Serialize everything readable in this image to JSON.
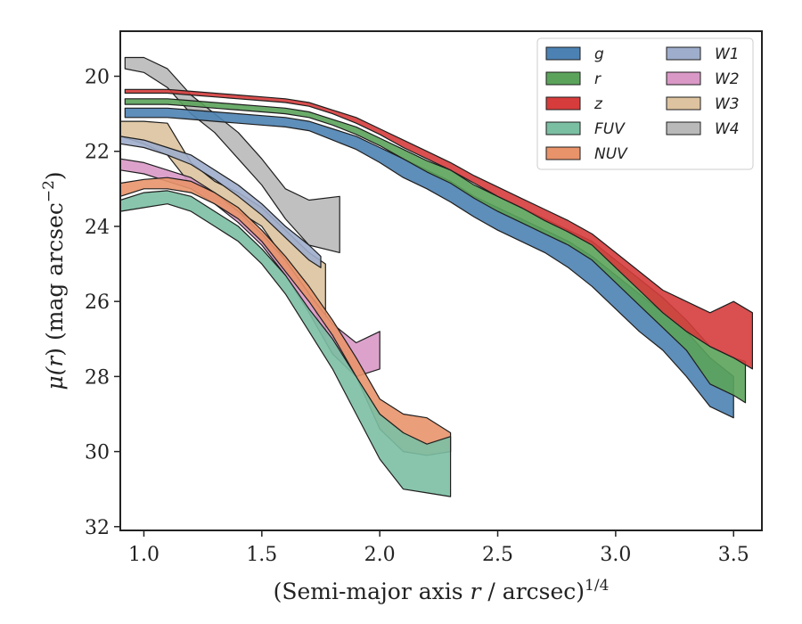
{
  "chart_data": {
    "type": "area",
    "title": "",
    "xlabel": "(Semi-major axis r / arcsec)",
    "xlabel_parts": {
      "pre": "(Semi-major axis ",
      "var": "r",
      "post": " / arcsec)",
      "sup": "1/4"
    },
    "ylabel": "μ(r) (mag arcsec⁻²)",
    "ylabel_parts": {
      "mu": "μ(",
      "var": "r",
      "close": ")",
      "units": " (mag arcsec",
      "sup": "−2",
      "end": ")"
    },
    "xlim": [
      0.9,
      3.62
    ],
    "ylim": [
      32.1,
      18.8
    ],
    "y_inverted": true,
    "xticks": [
      1.0,
      1.5,
      2.0,
      2.5,
      3.0,
      3.5
    ],
    "xtick_labels": [
      "1.0",
      "1.5",
      "2.0",
      "2.5",
      "3.0",
      "3.5"
    ],
    "yticks": [
      20,
      22,
      24,
      26,
      28,
      30,
      32
    ],
    "ytick_labels": [
      "20",
      "22",
      "24",
      "26",
      "28",
      "30",
      "32"
    ],
    "grid": false,
    "legend_position": "top-right",
    "legend_columns": 2,
    "series": [
      {
        "name": "g",
        "color": "#4c82b3",
        "x": [
          0.92,
          1.0,
          1.1,
          1.2,
          1.3,
          1.4,
          1.5,
          1.6,
          1.7,
          1.8,
          1.9,
          2.0,
          2.1,
          2.2,
          2.3,
          2.4,
          2.5,
          2.6,
          2.7,
          2.8,
          2.9,
          3.0,
          3.1,
          3.2,
          3.3,
          3.4,
          3.5
        ],
        "y_upper": [
          20.85,
          20.85,
          20.85,
          20.9,
          20.95,
          21.0,
          21.05,
          21.1,
          21.2,
          21.4,
          21.6,
          21.9,
          22.2,
          22.5,
          22.8,
          23.2,
          23.5,
          23.8,
          24.1,
          24.4,
          24.8,
          25.3,
          25.8,
          26.3,
          26.8,
          27.5,
          28.0
        ],
        "y_lower": [
          21.1,
          21.1,
          21.1,
          21.15,
          21.2,
          21.25,
          21.3,
          21.35,
          21.45,
          21.7,
          21.95,
          22.3,
          22.7,
          23.0,
          23.35,
          23.75,
          24.1,
          24.4,
          24.7,
          25.1,
          25.6,
          26.2,
          26.8,
          27.3,
          28.0,
          28.8,
          29.1
        ]
      },
      {
        "name": "r",
        "color": "#5ba35b",
        "x": [
          0.92,
          1.0,
          1.1,
          1.2,
          1.3,
          1.4,
          1.5,
          1.6,
          1.7,
          1.8,
          1.9,
          2.0,
          2.1,
          2.2,
          2.3,
          2.4,
          2.5,
          2.6,
          2.7,
          2.8,
          2.9,
          3.0,
          3.1,
          3.2,
          3.3,
          3.4,
          3.5,
          3.55
        ],
        "y_upper": [
          20.6,
          20.6,
          20.6,
          20.65,
          20.7,
          20.75,
          20.8,
          20.85,
          20.95,
          21.15,
          21.35,
          21.65,
          21.95,
          22.25,
          22.5,
          22.9,
          23.2,
          23.5,
          23.8,
          24.1,
          24.4,
          24.9,
          25.4,
          25.9,
          26.5,
          27.2,
          27.5,
          27.6
        ],
        "y_lower": [
          20.75,
          20.75,
          20.75,
          20.8,
          20.85,
          20.9,
          20.95,
          21.0,
          21.1,
          21.3,
          21.55,
          21.85,
          22.2,
          22.55,
          22.85,
          23.25,
          23.6,
          23.9,
          24.2,
          24.5,
          24.9,
          25.5,
          26.1,
          26.7,
          27.3,
          28.2,
          28.5,
          28.7
        ]
      },
      {
        "name": "z",
        "color": "#d63c3c",
        "x": [
          0.92,
          1.0,
          1.1,
          1.2,
          1.3,
          1.4,
          1.5,
          1.6,
          1.7,
          1.8,
          1.9,
          2.0,
          2.1,
          2.2,
          2.3,
          2.4,
          2.5,
          2.6,
          2.7,
          2.8,
          2.9,
          3.0,
          3.1,
          3.2,
          3.3,
          3.4,
          3.5,
          3.58
        ],
        "y_upper": [
          20.35,
          20.35,
          20.35,
          20.4,
          20.45,
          20.5,
          20.55,
          20.6,
          20.7,
          20.9,
          21.1,
          21.4,
          21.7,
          22.0,
          22.3,
          22.65,
          22.95,
          23.25,
          23.55,
          23.85,
          24.2,
          24.7,
          25.2,
          25.7,
          26.0,
          26.3,
          26.0,
          26.3
        ],
        "y_lower": [
          20.45,
          20.45,
          20.45,
          20.5,
          20.55,
          20.6,
          20.65,
          20.7,
          20.8,
          21.0,
          21.25,
          21.55,
          21.9,
          22.2,
          22.5,
          22.85,
          23.2,
          23.5,
          23.85,
          24.15,
          24.5,
          25.1,
          25.7,
          26.3,
          26.8,
          27.2,
          27.5,
          27.8
        ]
      },
      {
        "name": "FUV",
        "color": "#7bbfa3",
        "x": [
          0.9,
          1.0,
          1.1,
          1.2,
          1.3,
          1.4,
          1.5,
          1.6,
          1.7,
          1.8,
          1.9,
          2.0,
          2.1,
          2.2,
          2.3
        ],
        "y_upper": [
          23.3,
          23.1,
          23.05,
          23.2,
          23.6,
          24.0,
          24.6,
          25.3,
          26.2,
          27.0,
          28.0,
          29.0,
          29.5,
          29.8,
          29.6
        ],
        "y_lower": [
          23.6,
          23.5,
          23.4,
          23.6,
          24.0,
          24.4,
          25.0,
          25.8,
          26.8,
          27.8,
          29.0,
          30.2,
          31.0,
          31.1,
          31.2
        ]
      },
      {
        "name": "NUV",
        "color": "#e8936a",
        "x": [
          0.9,
          1.0,
          1.1,
          1.2,
          1.3,
          1.4,
          1.5,
          1.6,
          1.7,
          1.8,
          1.9,
          2.0,
          2.1,
          2.2,
          2.3
        ],
        "y_upper": [
          22.85,
          22.75,
          22.7,
          22.8,
          23.1,
          23.5,
          24.1,
          24.8,
          25.6,
          26.5,
          27.5,
          28.6,
          29.0,
          29.1,
          29.5
        ],
        "y_lower": [
          23.2,
          23.0,
          23.0,
          23.1,
          23.4,
          23.8,
          24.4,
          25.2,
          26.0,
          26.9,
          28.0,
          29.4,
          30.0,
          30.1,
          30.0
        ]
      },
      {
        "name": "W1",
        "color": "#9fadcc",
        "x": [
          0.9,
          1.0,
          1.1,
          1.2,
          1.3,
          1.4,
          1.5,
          1.6,
          1.7,
          1.75
        ],
        "y_upper": [
          21.6,
          21.7,
          21.9,
          22.1,
          22.5,
          22.9,
          23.4,
          24.0,
          24.5,
          24.8
        ],
        "y_lower": [
          21.8,
          21.9,
          22.1,
          22.35,
          22.75,
          23.2,
          23.7,
          24.3,
          24.9,
          25.1
        ]
      },
      {
        "name": "W2",
        "color": "#d998c6",
        "x": [
          0.9,
          1.0,
          1.1,
          1.2,
          1.3,
          1.4,
          1.5,
          1.6,
          1.7,
          1.8,
          1.9,
          2.0
        ],
        "y_upper": [
          22.2,
          22.3,
          22.5,
          22.7,
          23.1,
          23.6,
          24.2,
          24.9,
          25.8,
          26.6,
          27.1,
          26.8
        ],
        "y_lower": [
          22.5,
          22.6,
          22.8,
          23.0,
          23.4,
          23.9,
          24.5,
          25.3,
          26.3,
          27.4,
          28.0,
          27.8
        ]
      },
      {
        "name": "W3",
        "color": "#ddc39f",
        "x": [
          0.9,
          1.0,
          1.1,
          1.2,
          1.3,
          1.4,
          1.5,
          1.6,
          1.7,
          1.77
        ],
        "y_upper": [
          21.2,
          21.2,
          21.25,
          22.3,
          22.8,
          23.1,
          23.5,
          24.1,
          24.7,
          25.0
        ],
        "y_lower": [
          21.6,
          21.8,
          22.1,
          22.9,
          23.3,
          23.6,
          24.0,
          24.9,
          25.8,
          27.0
        ]
      },
      {
        "name": "W4",
        "color": "#b9b9b9",
        "x": [
          0.92,
          1.0,
          1.1,
          1.2,
          1.3,
          1.4,
          1.5,
          1.6,
          1.7,
          1.83
        ],
        "y_upper": [
          19.5,
          19.5,
          19.8,
          20.5,
          21.0,
          21.5,
          22.2,
          23.0,
          23.3,
          23.2
        ],
        "y_lower": [
          19.8,
          19.9,
          20.3,
          21.0,
          21.5,
          22.2,
          22.9,
          23.8,
          24.5,
          24.7
        ]
      }
    ]
  }
}
